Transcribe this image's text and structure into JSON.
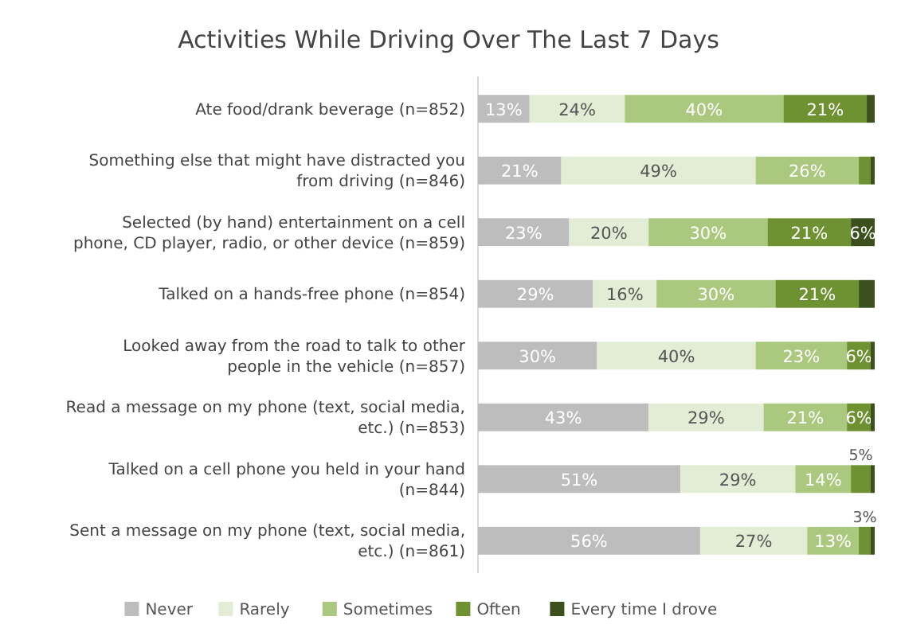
{
  "chart_data": {
    "type": "bar",
    "orientation": "horizontal",
    "stacked": true,
    "title": "Activities While Driving Over The Last 7 Days",
    "categories": [
      "Ate food/drank beverage (n=852)",
      "Something else that might have distracted you from driving  (n=846)",
      "Selected (by hand) entertainment on a cell phone, CD player, radio, or other device (n=859)",
      "Talked on a hands-free phone  (n=854)",
      "Looked away from the road to talk to other people in the vehicle (n=857)",
      "Read a message on my phone (text, social media, etc.) (n=853)",
      "Talked on a cell phone you held in your hand  (n=844)",
      "Sent a message on my phone (text, social media, etc.) (n=861)"
    ],
    "series": [
      {
        "name": "Never",
        "color": "#bdbdbd",
        "values": [
          13,
          21,
          23,
          29,
          30,
          43,
          51,
          56
        ],
        "value_labels": [
          "13%",
          "21%",
          "23%",
          "29%",
          "30%",
          "43%",
          "51%",
          "56%"
        ]
      },
      {
        "name": "Rarely",
        "color": "#e3ecd4",
        "values": [
          24,
          49,
          20,
          16,
          40,
          29,
          29,
          27
        ],
        "value_labels": [
          "24%",
          "49%",
          "20%",
          "16%",
          "40%",
          "29%",
          "29%",
          "27%"
        ]
      },
      {
        "name": "Sometimes",
        "color": "#aac97f",
        "values": [
          40,
          26,
          30,
          30,
          23,
          21,
          14,
          13
        ],
        "value_labels": [
          "40%",
          "26%",
          "30%",
          "30%",
          "23%",
          "21%",
          "14%",
          "13%"
        ]
      },
      {
        "name": "Often",
        "color": "#6e9132",
        "values": [
          21,
          3,
          21,
          21,
          6,
          6,
          5,
          3
        ],
        "value_labels": [
          "21%",
          null,
          "21%",
          "21%",
          "6%",
          "6%",
          "5%",
          "3%"
        ]
      },
      {
        "name": "Every time I drove",
        "color": "#3b501d",
        "values": [
          2,
          1,
          6,
          4,
          1,
          1,
          1,
          1
        ],
        "value_labels": [
          null,
          null,
          "6%",
          null,
          null,
          null,
          null,
          null
        ]
      }
    ],
    "xlim": [
      0,
      100
    ],
    "tick_labels": "y",
    "legend": "bottom",
    "grid": false
  }
}
